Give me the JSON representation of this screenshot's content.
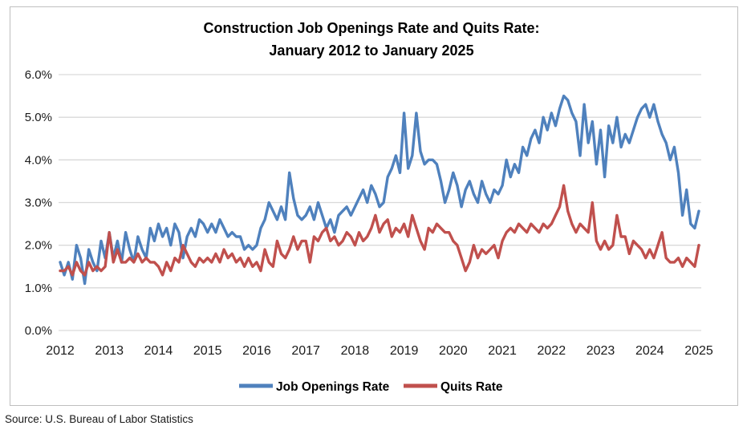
{
  "title": {
    "line1": "Construction Job Openings Rate and Quits Rate:",
    "line2": "January 2012 to January 2025"
  },
  "source": "Source: U.S. Bureau of Labor Statistics",
  "legend": [
    {
      "label": "Job Openings Rate",
      "color": "#4F81BD"
    },
    {
      "label": "Quits Rate",
      "color": "#C0504D"
    }
  ],
  "colors": {
    "grid": "#D9D9D9",
    "border": "#BFBFBF",
    "job_openings": "#4F81BD",
    "quits": "#C0504D"
  },
  "chart_data": {
    "type": "line",
    "title": "Construction Job Openings Rate and Quits Rate: January 2012 to January 2025",
    "x_start": "2012-01",
    "x_end": "2025-01",
    "x_frequency": "monthly",
    "x_tick_labels": [
      "2012",
      "2013",
      "2014",
      "2015",
      "2016",
      "2017",
      "2018",
      "2019",
      "2020",
      "2021",
      "2022",
      "2023",
      "2024",
      "2025"
    ],
    "y_tick_labels": [
      "0.0%",
      "1.0%",
      "2.0%",
      "3.0%",
      "4.0%",
      "5.0%",
      "6.0%"
    ],
    "ylim": [
      0,
      6
    ],
    "grid": "horizontal",
    "legend_position": "bottom",
    "series": [
      {
        "name": "Job Openings Rate",
        "color": "#4F81BD",
        "values": [
          1.6,
          1.3,
          1.6,
          1.2,
          2.0,
          1.7,
          1.1,
          1.9,
          1.6,
          1.4,
          2.1,
          1.7,
          2.3,
          1.7,
          2.1,
          1.6,
          2.3,
          1.9,
          1.6,
          2.2,
          1.9,
          1.7,
          2.4,
          2.1,
          2.5,
          2.2,
          2.4,
          2.0,
          2.5,
          2.3,
          1.7,
          2.2,
          2.4,
          2.2,
          2.6,
          2.5,
          2.3,
          2.5,
          2.3,
          2.6,
          2.4,
          2.2,
          2.3,
          2.2,
          2.2,
          1.9,
          2.0,
          1.9,
          2.0,
          2.4,
          2.6,
          3.0,
          2.8,
          2.6,
          2.9,
          2.6,
          3.7,
          3.1,
          2.7,
          2.6,
          2.7,
          2.9,
          2.6,
          3.0,
          2.7,
          2.4,
          2.6,
          2.3,
          2.7,
          2.8,
          2.9,
          2.7,
          2.9,
          3.1,
          3.3,
          3.0,
          3.4,
          3.2,
          2.9,
          3.0,
          3.6,
          3.8,
          4.1,
          3.7,
          5.1,
          3.8,
          4.1,
          5.1,
          4.2,
          3.9,
          4.0,
          4.0,
          3.9,
          3.5,
          3.0,
          3.3,
          3.7,
          3.4,
          2.9,
          3.3,
          3.5,
          3.2,
          3.0,
          3.5,
          3.2,
          3.0,
          3.3,
          3.2,
          3.4,
          4.0,
          3.6,
          3.9,
          3.7,
          4.3,
          4.1,
          4.5,
          4.7,
          4.4,
          5.0,
          4.7,
          5.1,
          4.8,
          5.2,
          5.5,
          5.4,
          5.1,
          4.9,
          4.1,
          5.3,
          4.4,
          4.9,
          3.9,
          4.7,
          3.6,
          4.8,
          4.4,
          5.0,
          4.3,
          4.6,
          4.4,
          4.7,
          5.0,
          5.2,
          5.3,
          5.0,
          5.3,
          4.9,
          4.6,
          4.4,
          4.0,
          4.3,
          3.7,
          2.7,
          3.3,
          2.5,
          2.4,
          2.8
        ]
      },
      {
        "name": "Quits Rate",
        "color": "#C0504D",
        "values": [
          1.4,
          1.4,
          1.5,
          1.3,
          1.6,
          1.4,
          1.3,
          1.6,
          1.4,
          1.5,
          1.4,
          1.5,
          2.3,
          1.6,
          1.9,
          1.6,
          1.6,
          1.7,
          1.6,
          1.8,
          1.6,
          1.7,
          1.6,
          1.6,
          1.5,
          1.3,
          1.6,
          1.4,
          1.7,
          1.6,
          2.0,
          1.8,
          1.6,
          1.5,
          1.7,
          1.6,
          1.7,
          1.6,
          1.8,
          1.6,
          1.9,
          1.7,
          1.8,
          1.6,
          1.7,
          1.5,
          1.7,
          1.5,
          1.6,
          1.4,
          1.9,
          1.6,
          1.5,
          2.1,
          1.8,
          1.7,
          1.9,
          2.2,
          1.9,
          2.1,
          2.1,
          1.6,
          2.2,
          2.1,
          2.3,
          2.4,
          2.1,
          2.2,
          2.0,
          2.1,
          2.3,
          2.2,
          2.0,
          2.3,
          2.1,
          2.2,
          2.4,
          2.7,
          2.3,
          2.5,
          2.6,
          2.2,
          2.4,
          2.3,
          2.5,
          2.2,
          2.7,
          2.4,
          2.1,
          1.9,
          2.4,
          2.3,
          2.5,
          2.4,
          2.3,
          2.3,
          2.1,
          2.0,
          1.7,
          1.4,
          1.6,
          2.0,
          1.7,
          1.9,
          1.8,
          1.9,
          2.0,
          1.7,
          2.1,
          2.3,
          2.4,
          2.3,
          2.5,
          2.4,
          2.3,
          2.5,
          2.4,
          2.3,
          2.5,
          2.4,
          2.5,
          2.7,
          2.9,
          3.4,
          2.8,
          2.5,
          2.3,
          2.5,
          2.4,
          2.3,
          3.0,
          2.1,
          1.9,
          2.1,
          1.9,
          2.0,
          2.7,
          2.2,
          2.2,
          1.8,
          2.1,
          2.0,
          1.9,
          1.7,
          1.9,
          1.7,
          2.0,
          2.3,
          1.7,
          1.6,
          1.6,
          1.7,
          1.5,
          1.7,
          1.6,
          1.5,
          2.0
        ]
      }
    ]
  }
}
